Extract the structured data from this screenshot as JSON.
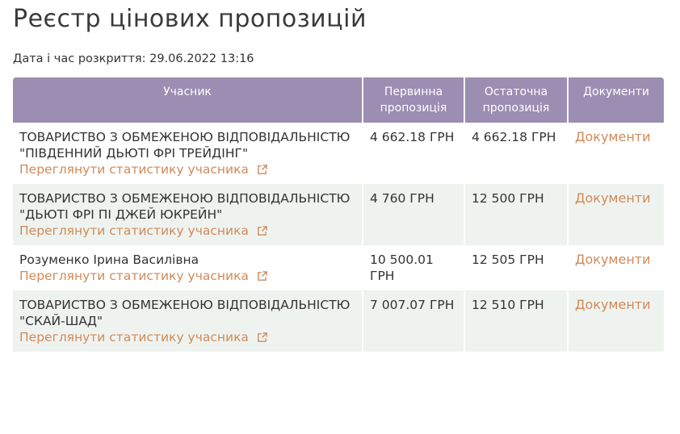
{
  "title": "Реєстр цінових пропозицій",
  "opening_date": "Дата і час розкриття: 29.06.2022 13:16",
  "headers": {
    "participant": "Учасник",
    "initial": "Первинна пропозиція",
    "final": "Остаточна пропозиція",
    "documents": "Документи"
  },
  "stats_link": "Переглянути статистику учасника",
  "rows": [
    {
      "participant": "ТОВАРИСТВО З ОБМЕЖЕНОЮ ВІДПОВІДАЛЬНІСТЮ \"ПІВДЕННИЙ ДЬЮТІ ФРІ ТРЕЙДІНГ\"",
      "initial": "4 662.18 ГРН",
      "final": "4 662.18 ГРН",
      "documents": "Документи"
    },
    {
      "participant": "ТОВАРИСТВО З ОБМЕЖЕНОЮ ВІДПОВІДАЛЬНІСТЮ \"ДЬЮТІ ФРІ ПІ ДЖЕЙ ЮКРЕЙН\"",
      "initial": "4 760 ГРН",
      "final": "12 500 ГРН",
      "documents": "Документи"
    },
    {
      "participant": "Розуменко Ірина Василівна",
      "initial": "10 500.01 ГРН",
      "final": "12 505 ГРН",
      "documents": "Документи"
    },
    {
      "participant": "ТОВАРИСТВО З ОБМЕЖЕНОЮ ВІДПОВІДАЛЬНІСТЮ \"СКАЙ-ШАД\"",
      "initial": "7 007.07 ГРН",
      "final": "12 510 ГРН",
      "documents": "Документи"
    }
  ],
  "colors": {
    "header_bg": "#9c8db2",
    "link": "#d08a58",
    "alt_row": "#eff3f0"
  }
}
